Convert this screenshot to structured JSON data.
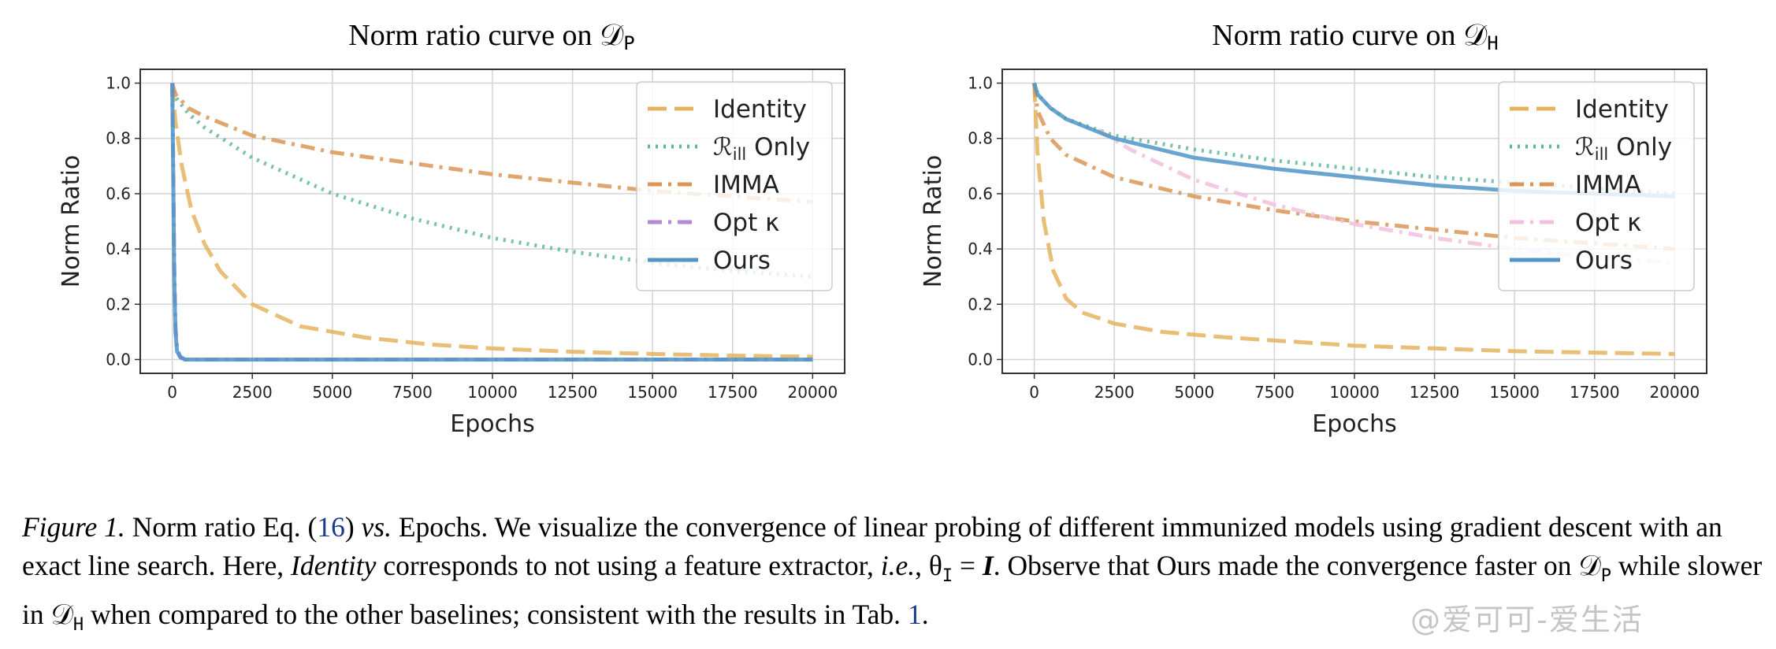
{
  "chart_data": [
    {
      "type": "line",
      "title": "Norm ratio curve on 𝒟",
      "title_sub": "P",
      "xlabel": "Epochs",
      "ylabel": "Norm Ratio",
      "xlim": [
        -1000,
        21000
      ],
      "ylim": [
        -0.05,
        1.05
      ],
      "xticks": [
        0,
        2500,
        5000,
        7500,
        10000,
        12500,
        15000,
        17500,
        20000
      ],
      "yticks": [
        0.0,
        0.2,
        0.4,
        0.6,
        0.8,
        1.0
      ],
      "grid": true,
      "legend_position": "upper right",
      "series": [
        {
          "name": "Identity",
          "color": "#e5b35f",
          "style": "dashed",
          "x": [
            0,
            100,
            300,
            600,
            1000,
            1500,
            2500,
            4000,
            6000,
            8000,
            10000,
            12500,
            15000,
            17500,
            20000
          ],
          "y": [
            1.0,
            0.86,
            0.7,
            0.54,
            0.42,
            0.32,
            0.2,
            0.12,
            0.08,
            0.055,
            0.04,
            0.028,
            0.02,
            0.014,
            0.01
          ]
        },
        {
          "name": "ℛ_ill Only",
          "color": "#5fb89a",
          "style": "dotted",
          "x": [
            0,
            100,
            500,
            1000,
            2500,
            5000,
            7500,
            10000,
            12500,
            15000,
            17500,
            20000
          ],
          "y": [
            1.0,
            0.95,
            0.89,
            0.84,
            0.73,
            0.6,
            0.51,
            0.44,
            0.39,
            0.35,
            0.32,
            0.3
          ]
        },
        {
          "name": "IMMA",
          "color": "#dc9557",
          "style": "dashdot",
          "x": [
            0,
            100,
            500,
            1000,
            2500,
            5000,
            7500,
            10000,
            12500,
            15000,
            17500,
            20000
          ],
          "y": [
            1.0,
            0.96,
            0.91,
            0.88,
            0.81,
            0.75,
            0.71,
            0.67,
            0.64,
            0.61,
            0.59,
            0.57
          ]
        },
        {
          "name": "Opt κ",
          "color": "#b28ad6",
          "style": "dashdot",
          "x": [
            0,
            30,
            60,
            100,
            150,
            250,
            400,
            20000
          ],
          "y": [
            1.0,
            0.7,
            0.35,
            0.12,
            0.04,
            0.01,
            0.0,
            0.0
          ]
        },
        {
          "name": "Ours",
          "color": "#4f95c6",
          "style": "solid",
          "x": [
            0,
            30,
            60,
            100,
            150,
            250,
            400,
            20000
          ],
          "y": [
            1.0,
            0.65,
            0.3,
            0.1,
            0.03,
            0.008,
            0.0,
            0.0
          ]
        }
      ]
    },
    {
      "type": "line",
      "title": "Norm ratio curve on 𝒟",
      "title_sub": "H",
      "xlabel": "Epochs",
      "ylabel": "Norm Ratio",
      "xlim": [
        -1000,
        21000
      ],
      "ylim": [
        -0.05,
        1.05
      ],
      "xticks": [
        0,
        2500,
        5000,
        7500,
        10000,
        12500,
        15000,
        17500,
        20000
      ],
      "yticks": [
        0.0,
        0.2,
        0.4,
        0.6,
        0.8,
        1.0
      ],
      "grid": true,
      "legend_position": "upper right",
      "series": [
        {
          "name": "Identity",
          "color": "#e5b35f",
          "style": "dashed",
          "x": [
            0,
            100,
            300,
            600,
            1000,
            1500,
            2500,
            4000,
            6000,
            8000,
            10000,
            12500,
            15000,
            17500,
            20000
          ],
          "y": [
            1.0,
            0.75,
            0.5,
            0.32,
            0.22,
            0.17,
            0.13,
            0.1,
            0.08,
            0.065,
            0.05,
            0.04,
            0.03,
            0.025,
            0.02
          ]
        },
        {
          "name": "ℛ_ill Only",
          "color": "#5fb89a",
          "style": "dotted",
          "x": [
            0,
            100,
            500,
            1000,
            2500,
            5000,
            7500,
            10000,
            12500,
            15000,
            17500,
            20000
          ],
          "y": [
            1.0,
            0.96,
            0.91,
            0.87,
            0.81,
            0.76,
            0.72,
            0.69,
            0.66,
            0.64,
            0.62,
            0.6
          ]
        },
        {
          "name": "IMMA",
          "color": "#dc9557",
          "style": "dashdot",
          "x": [
            0,
            100,
            500,
            1000,
            2500,
            5000,
            7500,
            10000,
            12500,
            15000,
            17500,
            20000
          ],
          "y": [
            1.0,
            0.9,
            0.8,
            0.74,
            0.66,
            0.59,
            0.54,
            0.5,
            0.47,
            0.44,
            0.42,
            0.4
          ]
        },
        {
          "name": "Opt κ",
          "color": "#f2c1dd",
          "style": "dashdot",
          "x": [
            2000,
            3000,
            5000,
            7500,
            10000,
            12500,
            15000,
            17500,
            20000
          ],
          "y": [
            0.83,
            0.76,
            0.65,
            0.56,
            0.49,
            0.44,
            0.4,
            0.37,
            0.35
          ]
        },
        {
          "name": "Ours",
          "color": "#4f95c6",
          "style": "solid",
          "x": [
            0,
            100,
            500,
            1000,
            2500,
            5000,
            7500,
            10000,
            12500,
            15000,
            17500,
            20000
          ],
          "y": [
            1.0,
            0.96,
            0.91,
            0.87,
            0.8,
            0.73,
            0.69,
            0.66,
            0.63,
            0.61,
            0.6,
            0.59
          ]
        }
      ]
    }
  ],
  "caption": {
    "label": "Figure 1.",
    "t1": " Norm ratio Eq. (",
    "ref1": "16",
    "t2": ") ",
    "vs": "vs.",
    "t3": " Epochs. We visualize the convergence of linear probing of different immunized models using gradient descent with an exact line search. Here, ",
    "identity": "Identity",
    "t4": " corresponds to not using a feature extractor, ",
    "ie": "i.e.",
    "t5": ", θ",
    "sub_I": "I",
    "t6": " = ",
    "bold_I": "I",
    "t7": ". Observe that Ours made the convergence faster on 𝒟",
    "sub_P": "P",
    "t8": " while slower in 𝒟",
    "sub_H": "H",
    "t9": " when compared to the other baselines; consistent with the results in Tab. ",
    "ref2": "1",
    "t10": "."
  },
  "watermark": "@爱可可-爱生活"
}
